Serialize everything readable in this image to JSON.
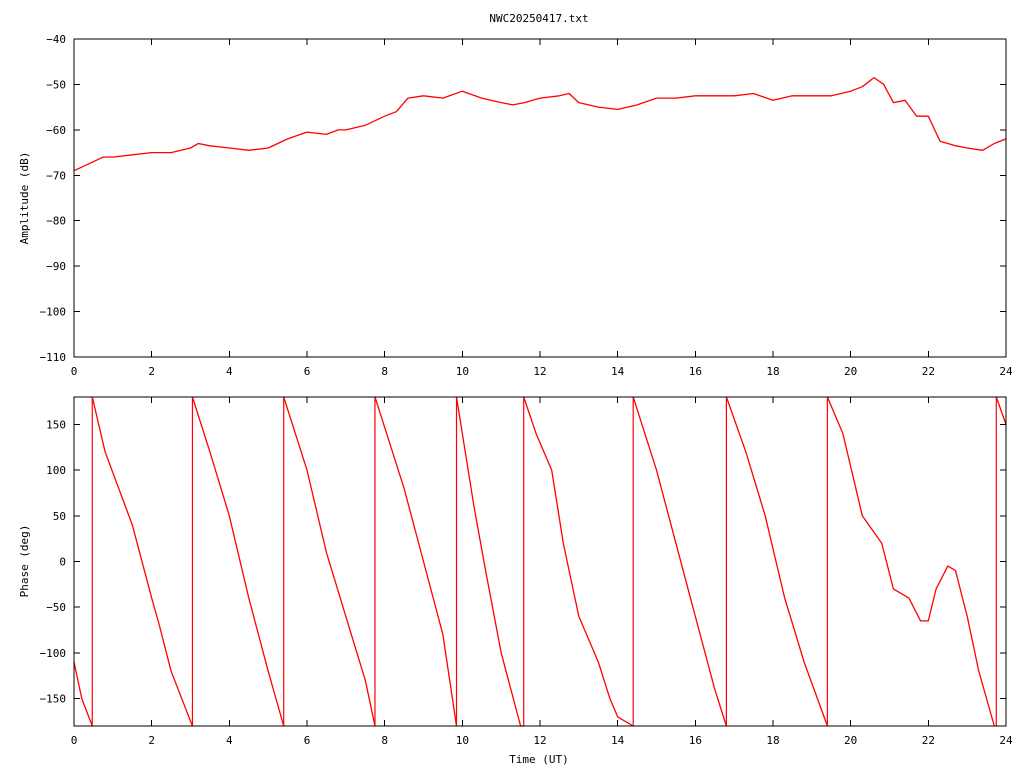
{
  "title": "NWC20250417.txt",
  "chart_data": [
    {
      "type": "line",
      "title": "NWC20250417.txt",
      "xlabel": "",
      "ylabel": "Amplitude (dB)",
      "xlim": [
        0,
        24
      ],
      "ylim": [
        -110,
        -40
      ],
      "xticks": [
        "0",
        "2",
        "4",
        "6",
        "8",
        "10",
        "12",
        "14",
        "16",
        "18",
        "20",
        "22",
        "24"
      ],
      "yticks": [
        "−40",
        "−50",
        "−60",
        "−70",
        "−80",
        "−90",
        "−100",
        "−110"
      ],
      "grid": false,
      "series": [
        {
          "color": "#ff0000",
          "x": [
            0,
            0.25,
            0.5,
            0.75,
            1,
            1.5,
            2,
            2.5,
            3,
            3.2,
            3.5,
            4,
            4.5,
            5,
            5.5,
            6,
            6.5,
            6.8,
            7,
            7.5,
            8,
            8.3,
            8.6,
            9,
            9.5,
            10,
            10.5,
            11,
            11.3,
            11.6,
            12,
            12.5,
            12.75,
            13,
            13.5,
            14,
            14.5,
            15,
            15.5,
            16,
            16.5,
            17,
            17.5,
            18,
            18.5,
            19,
            19.5,
            20,
            20.3,
            20.6,
            20.85,
            21.1,
            21.4,
            21.7,
            22,
            22.3,
            22.7,
            23,
            23.4,
            23.7,
            24
          ],
          "y": [
            -69,
            -68,
            -67,
            -66,
            -66,
            -65.5,
            -65,
            -65,
            -64,
            -63,
            -63.5,
            -64,
            -64.5,
            -64,
            -62,
            -60.5,
            -61,
            -60,
            -60,
            -59,
            -57,
            -56,
            -53,
            -52.5,
            -53,
            -51.5,
            -53,
            -54,
            -54.5,
            -54,
            -53,
            -52.5,
            -52,
            -54,
            -55,
            -55.5,
            -54.5,
            -53,
            -53,
            -52.5,
            -52.5,
            -52.5,
            -52,
            -53.5,
            -52.5,
            -52.5,
            -52.5,
            -51.5,
            -50.5,
            -48.5,
            -50,
            -54,
            -53.5,
            -57,
            -57,
            -62.5,
            -63.5,
            -64,
            -64.5,
            -63,
            -62
          ]
        }
      ]
    },
    {
      "type": "line",
      "title": "",
      "xlabel": "Time (UT)",
      "ylabel": "Phase (deg)",
      "xlim": [
        0,
        24
      ],
      "ylim": [
        -180,
        180
      ],
      "xticks": [
        "0",
        "2",
        "4",
        "6",
        "8",
        "10",
        "12",
        "14",
        "16",
        "18",
        "20",
        "22",
        "24"
      ],
      "yticks": [
        "150",
        "100",
        "50",
        "0",
        "−50",
        "−100",
        "−150"
      ],
      "grid": false,
      "series": [
        {
          "color": "#ff0000",
          "segments": [
            {
              "x": [
                0,
                0.2,
                0.47
              ],
              "y": [
                -110,
                -150,
                -180
              ]
            },
            {
              "x": [
                0.47,
                0.8,
                1.5,
                2,
                2.2,
                2.5,
                3.05
              ],
              "y": [
                180,
                120,
                40,
                -40,
                -70,
                -120,
                -180
              ]
            },
            {
              "x": [
                3.05,
                3.5,
                4,
                4.5,
                5,
                5.4
              ],
              "y": [
                180,
                120,
                50,
                -40,
                -120,
                -180
              ]
            },
            {
              "x": [
                5.4,
                6,
                6.5,
                7,
                7.5,
                7.75
              ],
              "y": [
                180,
                100,
                10,
                -60,
                -130,
                -180
              ]
            },
            {
              "x": [
                7.75,
                8.5,
                9,
                9.5,
                9.85
              ],
              "y": [
                180,
                80,
                0,
                -80,
                -180
              ]
            },
            {
              "x": [
                9.85,
                10.3,
                10.6,
                11,
                11.5,
                11.58
              ],
              "y": [
                180,
                60,
                -10,
                -100,
                -180,
                -180
              ]
            },
            {
              "x": [
                11.58,
                11.9,
                12.3,
                12.6,
                13,
                13.5,
                13.8,
                14,
                14.4
              ],
              "y": [
                180,
                140,
                100,
                20,
                -60,
                -110,
                -150,
                -170,
                -180
              ]
            },
            {
              "x": [
                14.4,
                15,
                15.5,
                16,
                16.5,
                16.8
              ],
              "y": [
                180,
                100,
                20,
                -60,
                -140,
                -180
              ]
            },
            {
              "x": [
                16.8,
                17.3,
                17.8,
                18.3,
                18.8,
                19.4
              ],
              "y": [
                180,
                120,
                50,
                -40,
                -110,
                -180
              ]
            },
            {
              "x": [
                19.4,
                19.8,
                20.3,
                20.8,
                21.1,
                21.5,
                21.8,
                22,
                22.2,
                22.5,
                22.7,
                23,
                23.3,
                23.7
              ],
              "y": [
                180,
                140,
                50,
                20,
                -30,
                -40,
                -65,
                -65,
                -30,
                -5,
                -10,
                -60,
                -120,
                -180
              ]
            },
            {
              "x": [
                23.75,
                24
              ],
              "y": [
                180,
                150
              ]
            }
          ]
        }
      ]
    }
  ]
}
